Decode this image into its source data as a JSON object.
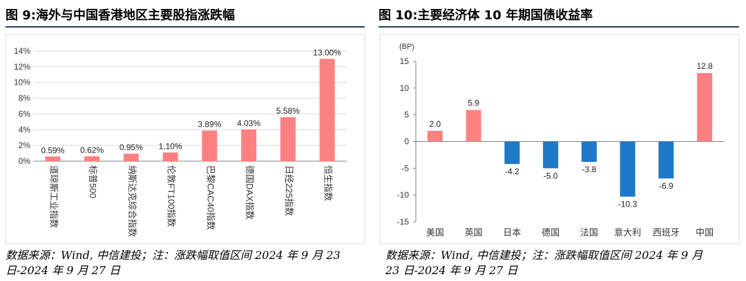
{
  "left": {
    "title": "图 9:海外与中国香港地区主要股指涨跌幅",
    "source_line1": "数据来源：Wind, 中信建投；注：涨跌幅取值区间 2024 年 9 月 23",
    "source_line2": "日-2024 年 9 月 27 日",
    "chart_data": {
      "type": "bar",
      "title": "",
      "categories": [
        "道琼斯工业指数",
        "标普500",
        "纳斯达克综合指数",
        "伦敦FT100指数",
        "巴黎CAC40指数",
        "德国DAX指数",
        "日经225指数",
        "恒生指数"
      ],
      "values": [
        0.59,
        0.62,
        0.95,
        1.1,
        3.89,
        4.03,
        5.58,
        13.0
      ],
      "value_labels": [
        "0.59%",
        "0.62%",
        "0.95%",
        "1.10%",
        "3.89%",
        "4.03%",
        "5.58%",
        "13.00%"
      ],
      "ylim": [
        0,
        14
      ],
      "yticks": [
        0,
        2,
        4,
        6,
        8,
        10,
        12,
        14
      ],
      "ytick_labels": [
        "0%",
        "2%",
        "4%",
        "6%",
        "8%",
        "10%",
        "12%",
        "14%"
      ],
      "xlabel": "",
      "ylabel": "",
      "bar_color": "#ff8080"
    }
  },
  "right": {
    "title": "图 10:主要经济体 10 年期国债收益率",
    "source_line1": "数据来源：Wind, 中信建投；注：涨跌幅取值区间 2024 年 9 月",
    "source_line2": "23 日-2024 年 9 月 27 日",
    "chart_data": {
      "type": "bar",
      "title": "",
      "unit_label": "(BP)",
      "categories": [
        "美国",
        "英国",
        "日本",
        "德国",
        "法国",
        "意大利",
        "西班牙",
        "中国"
      ],
      "values": [
        2.0,
        5.9,
        -4.2,
        -5.0,
        -3.8,
        -10.3,
        -6.9,
        12.8
      ],
      "value_labels": [
        "2.0",
        "5.9",
        "-4.2",
        "-5.0",
        "-3.8",
        "-10.3",
        "-6.9",
        "12.8"
      ],
      "ylim": [
        -15,
        15
      ],
      "yticks": [
        -15,
        -10,
        -5,
        0,
        5,
        10,
        15
      ],
      "ytick_labels": [
        "-15",
        "-10",
        "-5",
        "0",
        "5",
        "10",
        "15"
      ],
      "xlabel": "",
      "ylabel": "",
      "positive_color": "#ff8080",
      "negative_color": "#1f78c8"
    }
  }
}
